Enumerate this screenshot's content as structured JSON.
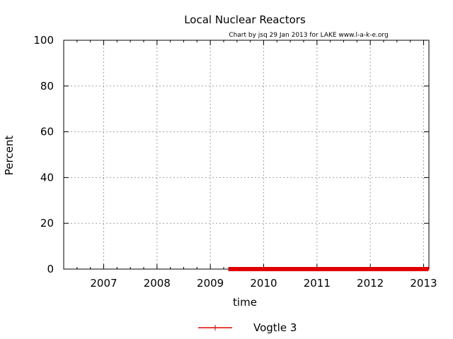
{
  "chart_data": {
    "type": "line",
    "title": "Local Nuclear Reactors",
    "subtitle": "Chart by jsq 29 Jan 2013 for LAKE www.l-a-k-e.org",
    "xlabel": "time",
    "ylabel": "Percent",
    "xlim": [
      2006.25,
      2013.1
    ],
    "ylim": [
      0,
      100
    ],
    "x_ticks": [
      "2007",
      "2008",
      "2009",
      "2010",
      "2011",
      "2012",
      "2013"
    ],
    "y_ticks": [
      0,
      20,
      40,
      60,
      80,
      100
    ],
    "grid": true,
    "legend_placement": "bottom-center",
    "series": [
      {
        "name": "Vogtle 3",
        "color": "#e00000",
        "points": [
          {
            "x": 2009.35,
            "y": 0
          },
          {
            "x": 2013.08,
            "y": 0
          }
        ]
      }
    ]
  }
}
